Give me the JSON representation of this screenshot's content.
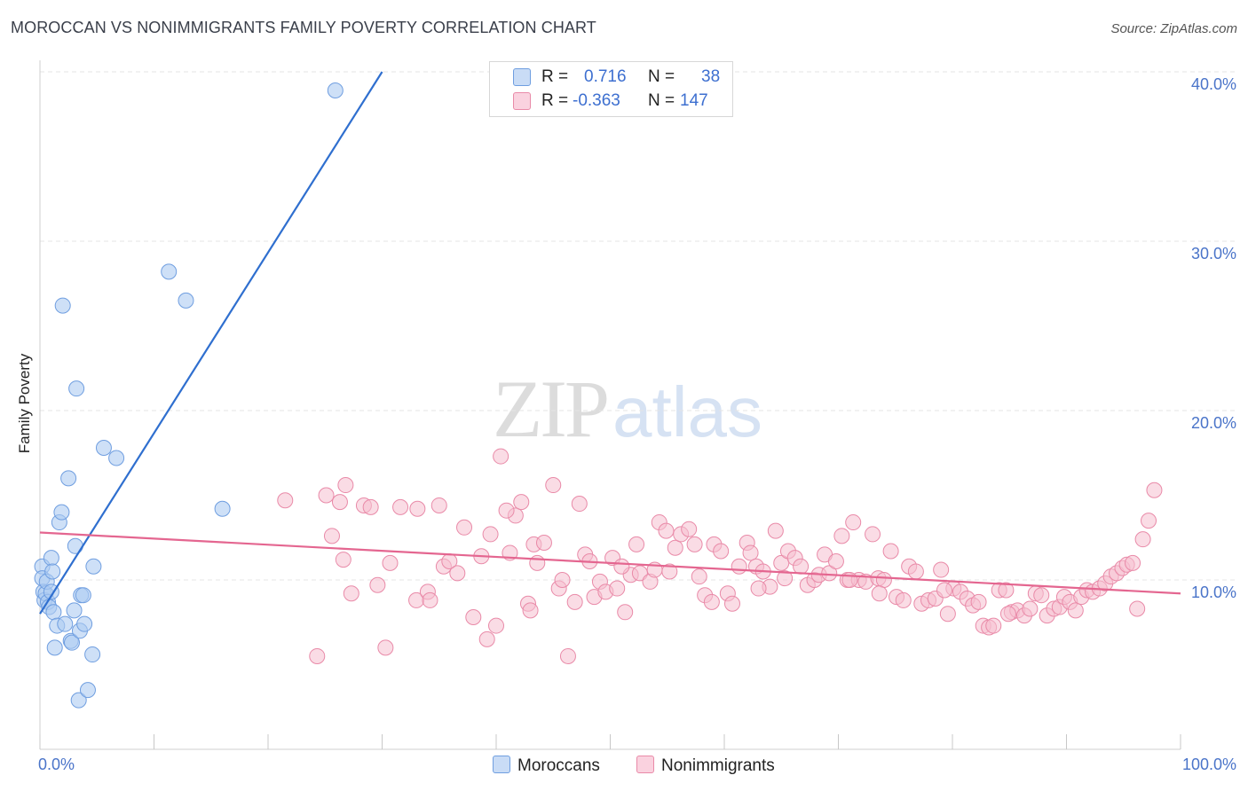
{
  "header": {
    "title": "MOROCCAN VS NONIMMIGRANTS FAMILY POVERTY CORRELATION CHART",
    "source": "Source: ZipAtlas.com"
  },
  "watermark": {
    "zip": "ZIP",
    "atlas": "atlas"
  },
  "legend": {
    "rows": [
      {
        "r_label": "R =",
        "r_value": "0.716",
        "n_label": "N =",
        "n_value": "38"
      },
      {
        "r_label": "R =",
        "r_value": "-0.363",
        "n_label": "N =",
        "n_value": "147"
      }
    ]
  },
  "colors": {
    "blue_fill": "#aecbf1",
    "blue_stroke": "#6f9ee0",
    "blue_line": "#2f6fcf",
    "pink_fill": "#f6bfd0",
    "pink_stroke": "#e98aa8",
    "pink_line": "#e46690",
    "tick_text": "#4a74c9"
  },
  "chart_data": {
    "type": "scatter",
    "title": "MOROCCAN VS NONIMMIGRANTS FAMILY POVERTY CORRELATION CHART",
    "xlabel": "",
    "ylabel": "Family Poverty",
    "xlim": [
      0,
      100
    ],
    "ylim": [
      0,
      41
    ],
    "x_tick_labels": [
      "0.0%",
      "100.0%"
    ],
    "y_ticks": [
      10,
      20,
      30,
      40
    ],
    "y_tick_labels": [
      "10.0%",
      "20.0%",
      "30.0%",
      "40.0%"
    ],
    "grid": true,
    "series": [
      {
        "name": "Moroccans",
        "r": 0.716,
        "n": 38,
        "trend": {
          "x0": 0,
          "y0": 8.0,
          "x1": 30,
          "y1": 40.0
        },
        "points": [
          [
            0.2,
            10.8
          ],
          [
            0.2,
            10.1
          ],
          [
            0.3,
            9.3
          ],
          [
            0.4,
            8.8
          ],
          [
            0.5,
            9.2
          ],
          [
            0.6,
            9.9
          ],
          [
            0.7,
            8.7
          ],
          [
            0.8,
            8.4
          ],
          [
            1.0,
            11.3
          ],
          [
            1.1,
            10.5
          ],
          [
            1.2,
            8.1
          ],
          [
            1.3,
            6.0
          ],
          [
            1.5,
            7.3
          ],
          [
            1.7,
            13.4
          ],
          [
            1.9,
            14.0
          ],
          [
            2.0,
            26.2
          ],
          [
            2.2,
            7.4
          ],
          [
            2.5,
            16.0
          ],
          [
            2.7,
            6.4
          ],
          [
            2.8,
            6.3
          ],
          [
            3.0,
            8.2
          ],
          [
            3.1,
            12.0
          ],
          [
            3.2,
            21.3
          ],
          [
            3.4,
            2.9
          ],
          [
            3.5,
            7.0
          ],
          [
            3.6,
            9.1
          ],
          [
            3.8,
            9.1
          ],
          [
            3.9,
            7.4
          ],
          [
            4.2,
            3.5
          ],
          [
            4.6,
            5.6
          ],
          [
            4.7,
            10.8
          ],
          [
            5.6,
            17.8
          ],
          [
            6.7,
            17.2
          ],
          [
            11.3,
            28.2
          ],
          [
            12.8,
            26.5
          ],
          [
            16.0,
            14.2
          ],
          [
            25.9,
            38.9
          ],
          [
            1.0,
            9.3
          ]
        ]
      },
      {
        "name": "Nonimmigrants",
        "r": -0.363,
        "n": 147,
        "trend": {
          "x0": 0,
          "y0": 12.8,
          "x1": 100,
          "y1": 9.2
        },
        "points": [
          [
            21.5,
            14.7
          ],
          [
            24.3,
            5.5
          ],
          [
            25.1,
            15.0
          ],
          [
            25.6,
            12.6
          ],
          [
            26.3,
            14.6
          ],
          [
            26.6,
            11.2
          ],
          [
            26.8,
            15.6
          ],
          [
            27.3,
            9.2
          ],
          [
            28.4,
            14.4
          ],
          [
            29.0,
            14.3
          ],
          [
            29.6,
            9.7
          ],
          [
            30.3,
            6.0
          ],
          [
            30.7,
            11.0
          ],
          [
            31.6,
            14.3
          ],
          [
            33.0,
            8.8
          ],
          [
            33.1,
            14.2
          ],
          [
            34.0,
            9.3
          ],
          [
            34.2,
            8.8
          ],
          [
            35.0,
            14.4
          ],
          [
            35.4,
            10.8
          ],
          [
            35.9,
            11.1
          ],
          [
            36.6,
            10.4
          ],
          [
            37.2,
            13.1
          ],
          [
            38.0,
            7.8
          ],
          [
            38.7,
            11.4
          ],
          [
            39.2,
            6.5
          ],
          [
            39.5,
            12.7
          ],
          [
            40.0,
            7.3
          ],
          [
            40.4,
            17.3
          ],
          [
            41.2,
            11.6
          ],
          [
            41.7,
            13.8
          ],
          [
            42.2,
            14.6
          ],
          [
            42.8,
            8.6
          ],
          [
            43.3,
            12.1
          ],
          [
            43.6,
            11.0
          ],
          [
            44.2,
            12.2
          ],
          [
            45.0,
            15.6
          ],
          [
            45.5,
            9.5
          ],
          [
            45.8,
            10.0
          ],
          [
            46.3,
            5.5
          ],
          [
            46.9,
            8.7
          ],
          [
            47.3,
            14.5
          ],
          [
            47.8,
            11.5
          ],
          [
            48.6,
            9.0
          ],
          [
            49.1,
            9.9
          ],
          [
            49.6,
            9.3
          ],
          [
            50.2,
            11.3
          ],
          [
            50.6,
            9.5
          ],
          [
            51.3,
            8.1
          ],
          [
            51.8,
            10.3
          ],
          [
            52.3,
            12.1
          ],
          [
            52.6,
            10.4
          ],
          [
            53.5,
            9.9
          ],
          [
            53.9,
            10.6
          ],
          [
            54.3,
            13.4
          ],
          [
            54.9,
            12.9
          ],
          [
            55.7,
            11.9
          ],
          [
            56.2,
            12.7
          ],
          [
            56.9,
            13.0
          ],
          [
            57.4,
            12.1
          ],
          [
            57.8,
            10.2
          ],
          [
            58.3,
            9.1
          ],
          [
            59.1,
            12.1
          ],
          [
            59.7,
            11.7
          ],
          [
            60.3,
            9.2
          ],
          [
            60.7,
            8.6
          ],
          [
            61.3,
            10.8
          ],
          [
            62.0,
            12.2
          ],
          [
            62.3,
            11.6
          ],
          [
            62.8,
            10.8
          ],
          [
            63.4,
            10.5
          ],
          [
            64.0,
            9.6
          ],
          [
            64.5,
            12.9
          ],
          [
            65.0,
            11.0
          ],
          [
            65.6,
            11.7
          ],
          [
            66.2,
            11.3
          ],
          [
            66.7,
            10.8
          ],
          [
            67.3,
            9.7
          ],
          [
            67.9,
            10.0
          ],
          [
            68.3,
            10.3
          ],
          [
            68.8,
            11.5
          ],
          [
            69.2,
            10.4
          ],
          [
            69.8,
            11.1
          ],
          [
            70.3,
            12.6
          ],
          [
            70.8,
            10.0
          ],
          [
            71.3,
            13.4
          ],
          [
            71.8,
            10.0
          ],
          [
            72.4,
            9.9
          ],
          [
            73.0,
            12.7
          ],
          [
            73.5,
            10.1
          ],
          [
            74.0,
            10.0
          ],
          [
            74.6,
            11.7
          ],
          [
            75.1,
            9.0
          ],
          [
            75.7,
            8.8
          ],
          [
            76.2,
            10.8
          ],
          [
            76.8,
            10.5
          ],
          [
            77.3,
            8.6
          ],
          [
            77.9,
            8.8
          ],
          [
            78.5,
            8.9
          ],
          [
            79.0,
            10.6
          ],
          [
            79.6,
            8.0
          ],
          [
            80.1,
            9.5
          ],
          [
            80.7,
            9.3
          ],
          [
            81.3,
            8.9
          ],
          [
            81.8,
            8.5
          ],
          [
            82.3,
            8.7
          ],
          [
            82.7,
            7.3
          ],
          [
            83.2,
            7.2
          ],
          [
            83.6,
            7.3
          ],
          [
            84.1,
            9.4
          ],
          [
            84.7,
            9.4
          ],
          [
            85.2,
            8.1
          ],
          [
            85.7,
            8.2
          ],
          [
            86.3,
            7.9
          ],
          [
            86.8,
            8.3
          ],
          [
            87.3,
            9.2
          ],
          [
            87.8,
            9.1
          ],
          [
            88.3,
            7.9
          ],
          [
            88.9,
            8.3
          ],
          [
            89.4,
            8.4
          ],
          [
            89.8,
            9.0
          ],
          [
            90.3,
            8.7
          ],
          [
            90.8,
            8.2
          ],
          [
            91.3,
            9.0
          ],
          [
            91.8,
            9.4
          ],
          [
            92.3,
            9.3
          ],
          [
            92.9,
            9.5
          ],
          [
            93.4,
            9.8
          ],
          [
            93.9,
            10.2
          ],
          [
            94.4,
            10.4
          ],
          [
            94.9,
            10.7
          ],
          [
            95.3,
            10.9
          ],
          [
            95.8,
            11.0
          ],
          [
            96.2,
            8.3
          ],
          [
            96.7,
            12.4
          ],
          [
            97.2,
            13.5
          ],
          [
            97.7,
            15.3
          ],
          [
            40.9,
            14.1
          ],
          [
            43.0,
            8.2
          ],
          [
            48.2,
            11.1
          ],
          [
            51.0,
            10.8
          ],
          [
            55.2,
            10.5
          ],
          [
            58.9,
            8.7
          ],
          [
            63.0,
            9.5
          ],
          [
            65.3,
            10.1
          ],
          [
            71.0,
            10.0
          ],
          [
            73.6,
            9.2
          ],
          [
            79.3,
            9.4
          ],
          [
            84.9,
            8.0
          ]
        ]
      }
    ]
  },
  "bottom_legend": {
    "items": [
      "Moroccans",
      "Nonimmigrants"
    ]
  }
}
